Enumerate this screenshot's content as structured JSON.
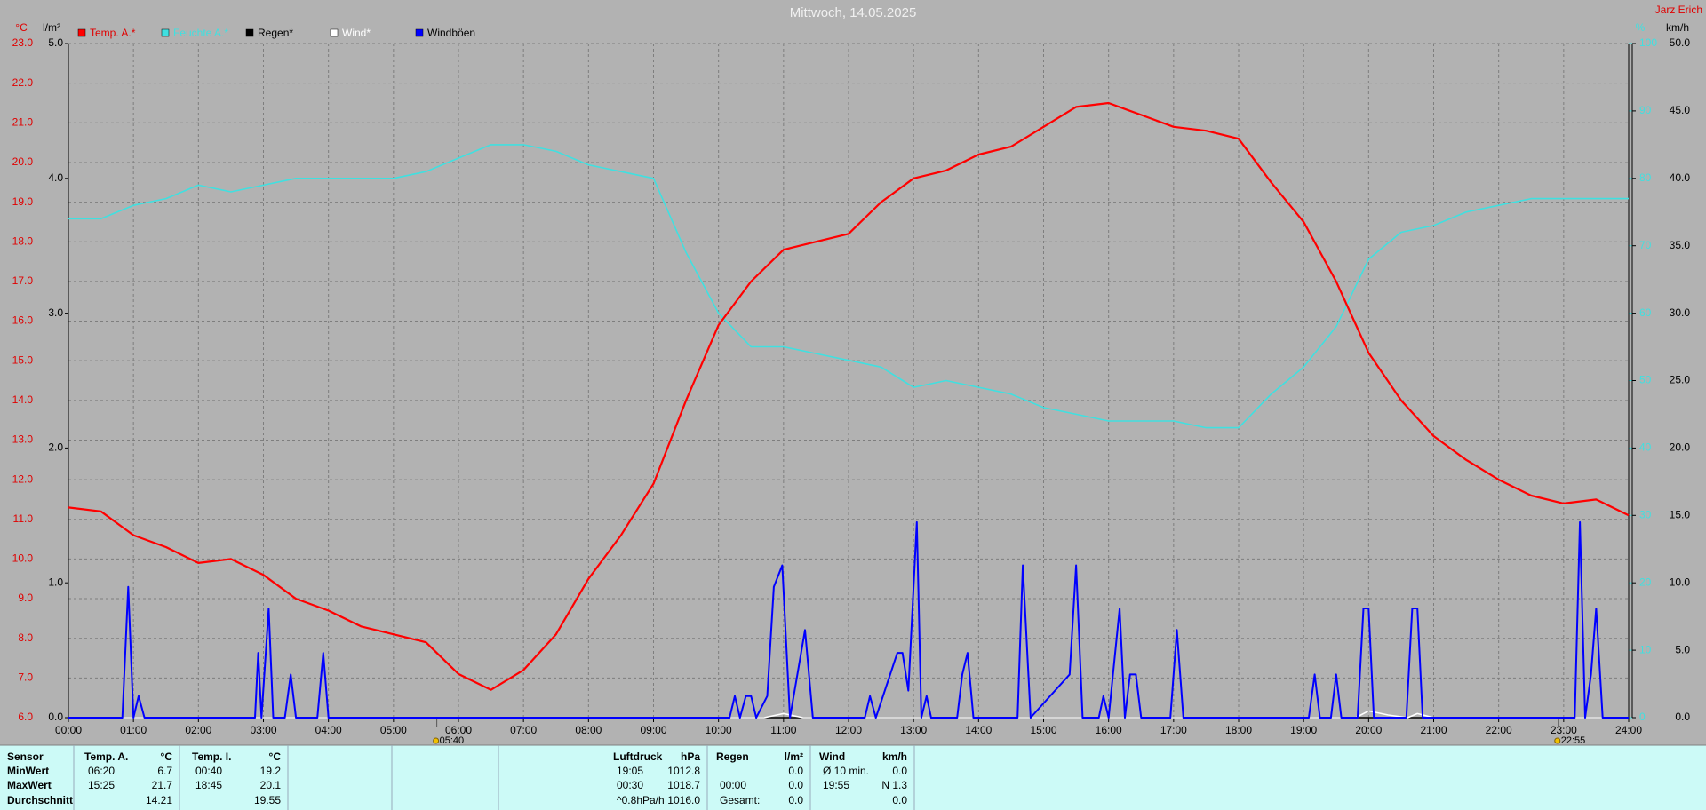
{
  "chart_data": {
    "type": "line",
    "title": "Mittwoch, 14.05.2025",
    "author": "Jarz Erich",
    "axis_labels": {
      "y": "°C",
      "y2": "l/m²",
      "y3": "%",
      "y4": "km/h"
    },
    "xlim": [
      0,
      24
    ],
    "xticks": [
      {
        "value": 0,
        "label": "00:00"
      },
      {
        "value": 1,
        "label": "01:00"
      },
      {
        "value": 2,
        "label": "02:00"
      },
      {
        "value": 3,
        "label": "03:00"
      },
      {
        "value": 4,
        "label": "04:00"
      },
      {
        "value": 5,
        "label": "05:00"
      },
      {
        "value": 6,
        "label": "06:00"
      },
      {
        "value": 7,
        "label": "07:00"
      },
      {
        "value": 8,
        "label": "08:00"
      },
      {
        "value": 9,
        "label": "09:00"
      },
      {
        "value": 10,
        "label": "10:00"
      },
      {
        "value": 11,
        "label": "11:00"
      },
      {
        "value": 12,
        "label": "12:00"
      },
      {
        "value": 13,
        "label": "13:00"
      },
      {
        "value": 14,
        "label": "14:00"
      },
      {
        "value": 15,
        "label": "15:00"
      },
      {
        "value": 16,
        "label": "16:00"
      },
      {
        "value": 17,
        "label": "17:00"
      },
      {
        "value": 18,
        "label": "18:00"
      },
      {
        "value": 19,
        "label": "19:00"
      },
      {
        "value": 20,
        "label": "20:00"
      },
      {
        "value": 21,
        "label": "21:00"
      },
      {
        "value": 22,
        "label": "22:00"
      },
      {
        "value": 23,
        "label": "23:00"
      },
      {
        "value": 24,
        "label": "24:00"
      }
    ],
    "ylim": [
      6,
      23
    ],
    "yticks": [
      {
        "value": 6,
        "label": "6.0"
      },
      {
        "value": 7,
        "label": "7.0"
      },
      {
        "value": 8,
        "label": "8.0"
      },
      {
        "value": 9,
        "label": "9.0"
      },
      {
        "value": 10,
        "label": "10.0"
      },
      {
        "value": 11,
        "label": "11.0"
      },
      {
        "value": 12,
        "label": "12.0"
      },
      {
        "value": 13,
        "label": "13.0"
      },
      {
        "value": 14,
        "label": "14.0"
      },
      {
        "value": 15,
        "label": "15.0"
      },
      {
        "value": 16,
        "label": "16.0"
      },
      {
        "value": 17,
        "label": "17.0"
      },
      {
        "value": 18,
        "label": "18.0"
      },
      {
        "value": 19,
        "label": "19.0"
      },
      {
        "value": 20,
        "label": "20.0"
      },
      {
        "value": 21,
        "label": "21.0"
      },
      {
        "value": 22,
        "label": "22.0"
      },
      {
        "value": 23,
        "label": "23.0"
      }
    ],
    "y2lim": [
      0,
      5
    ],
    "y2ticks": [
      {
        "value": 0,
        "label": "0.0"
      },
      {
        "value": 1,
        "label": "1.0"
      },
      {
        "value": 2,
        "label": "2.0"
      },
      {
        "value": 3,
        "label": "3.0"
      },
      {
        "value": 4,
        "label": "4.0"
      },
      {
        "value": 5,
        "label": "5.0"
      }
    ],
    "y3lim": [
      0,
      100
    ],
    "y3ticks": [
      0,
      10,
      20,
      30,
      40,
      50,
      60,
      70,
      80,
      90,
      100
    ],
    "y4lim": [
      0,
      50
    ],
    "y4ticks": [
      {
        "value": 0,
        "label": "0.0"
      },
      {
        "value": 5,
        "label": "5.0"
      },
      {
        "value": 10,
        "label": "10.0"
      },
      {
        "value": 15,
        "label": "15.0"
      },
      {
        "value": 20,
        "label": "20.0"
      },
      {
        "value": 25,
        "label": "25.0"
      },
      {
        "value": 30,
        "label": "30.0"
      },
      {
        "value": 35,
        "label": "35.0"
      },
      {
        "value": 40,
        "label": "40.0"
      },
      {
        "value": 45,
        "label": "45.0"
      },
      {
        "value": 50,
        "label": "50.0"
      }
    ],
    "grid": true,
    "series": [
      {
        "name": "Temp. A.*",
        "color": "#ff0000",
        "axis": "y",
        "x": [
          0,
          0.5,
          1,
          1.5,
          2,
          2.5,
          3,
          3.5,
          4,
          4.5,
          5,
          5.5,
          6,
          6.5,
          7,
          7.5,
          8,
          8.5,
          9,
          9.5,
          10,
          10.5,
          11,
          11.5,
          12,
          12.5,
          13,
          13.5,
          14,
          14.5,
          15,
          15.5,
          16,
          16.5,
          17,
          17.5,
          18,
          18.5,
          19,
          19.5,
          20,
          20.5,
          21,
          21.5,
          22,
          22.5,
          23,
          23.5,
          24
        ],
        "values": [
          11.3,
          11.2,
          10.6,
          10.3,
          9.9,
          10.0,
          9.6,
          9.0,
          8.7,
          8.3,
          8.1,
          7.9,
          7.1,
          6.7,
          7.2,
          8.1,
          9.5,
          10.6,
          11.9,
          14.0,
          15.9,
          17.0,
          17.8,
          18.0,
          18.2,
          19.0,
          19.6,
          19.8,
          20.2,
          20.4,
          20.9,
          21.4,
          21.5,
          21.2,
          20.9,
          20.8,
          20.6,
          19.5,
          18.5,
          17.0,
          15.2,
          14.0,
          13.1,
          12.5,
          12.0,
          11.6,
          11.4,
          11.5,
          11.1
        ]
      },
      {
        "name": "Feuchte A.*",
        "color": "#40e0e0",
        "axis": "y3",
        "x": [
          0,
          0.5,
          1,
          1.5,
          2,
          2.5,
          3,
          3.5,
          4,
          4.5,
          5,
          5.5,
          6,
          6.5,
          7,
          7.5,
          8,
          8.5,
          9,
          9.5,
          10,
          10.5,
          11,
          11.5,
          12,
          12.5,
          13,
          13.5,
          14,
          14.5,
          15,
          15.5,
          16,
          16.5,
          17,
          17.5,
          18,
          18.5,
          19,
          19.5,
          20,
          20.5,
          21,
          21.5,
          22,
          22.5,
          23,
          23.5,
          24
        ],
        "values": [
          74,
          74,
          76,
          77,
          79,
          78,
          79,
          80,
          80,
          80,
          80,
          81,
          83,
          85,
          85,
          84,
          82,
          81,
          80,
          69,
          60,
          55,
          55,
          54,
          53,
          52,
          49,
          50,
          49,
          48,
          46,
          45,
          44,
          44,
          44,
          43,
          43,
          48,
          52,
          58,
          68,
          72,
          73,
          75,
          76,
          77,
          77,
          77,
          77
        ]
      },
      {
        "name": "Regen*",
        "color": "#000000",
        "axis": "y2",
        "x": [
          0,
          24
        ],
        "values": [
          0,
          0
        ]
      },
      {
        "name": "Wind*",
        "color": "#ffffff",
        "axis": "y4",
        "x": [
          0,
          10.7,
          11,
          11.3,
          19.8,
          20,
          20.3,
          20.6,
          20.75,
          21,
          24
        ],
        "values": [
          0,
          0,
          0.3,
          0,
          0,
          0.5,
          0.2,
          0,
          0.3,
          0,
          0
        ]
      },
      {
        "name": "Windböen",
        "color": "#0000ff",
        "axis": "y4",
        "x": [
          0,
          0.83,
          0.92,
          1.0,
          1.08,
          1.17,
          2.87,
          2.92,
          2.97,
          3.08,
          3.15,
          3.33,
          3.42,
          3.5,
          3.83,
          3.92,
          4.0,
          10.17,
          10.25,
          10.33,
          10.42,
          10.5,
          10.58,
          10.75,
          10.85,
          10.98,
          11.1,
          11.33,
          11.45,
          12.25,
          12.33,
          12.42,
          12.75,
          12.83,
          12.92,
          13.05,
          13.12,
          13.2,
          13.27,
          13.67,
          13.75,
          13.83,
          13.92,
          14.6,
          14.68,
          14.8,
          15.4,
          15.5,
          15.6,
          15.85,
          15.92,
          16.0,
          16.17,
          16.25,
          16.33,
          16.42,
          16.5,
          16.95,
          17.05,
          17.15,
          19.08,
          19.17,
          19.25,
          19.42,
          19.5,
          19.58,
          19.83,
          19.92,
          20.0,
          20.08,
          20.58,
          20.67,
          20.75,
          20.83,
          23.17,
          23.25,
          23.33,
          23.42,
          23.5,
          23.6,
          24
        ],
        "values": [
          0,
          0,
          9.7,
          0,
          1.6,
          0,
          0,
          4.8,
          0,
          8.1,
          0,
          0,
          3.2,
          0,
          0,
          4.8,
          0,
          0,
          1.6,
          0,
          1.6,
          1.6,
          0,
          1.6,
          9.7,
          11.3,
          0,
          6.5,
          0,
          0,
          1.6,
          0,
          4.8,
          4.8,
          2.0,
          14.5,
          0,
          1.6,
          0,
          0,
          3.2,
          4.8,
          0,
          0,
          11.3,
          0,
          3.2,
          11.3,
          0,
          0,
          1.6,
          0,
          8.1,
          0,
          3.2,
          3.2,
          0,
          0,
          6.5,
          0,
          0,
          3.2,
          0,
          0,
          3.2,
          0,
          0,
          8.1,
          8.1,
          0,
          0,
          8.1,
          8.1,
          0,
          0,
          14.5,
          0,
          3.2,
          8.1,
          0,
          0
        ]
      }
    ],
    "annotations": [
      {
        "x": 5.667,
        "label": "05:40"
      },
      {
        "x": 22.917,
        "label": "22:55"
      }
    ]
  },
  "stats_table": {
    "row_labels": [
      "Sensor",
      "MinWert",
      "MaxWert",
      "Durchschnitt"
    ],
    "panels": [
      {
        "title": "Temp. A.",
        "unit": "°C",
        "rows": [
          [
            "06:20",
            "6.7"
          ],
          [
            "15:25",
            "21.7"
          ],
          [
            null,
            "14.21"
          ]
        ]
      },
      {
        "title": "Temp. I.",
        "unit": "°C",
        "rows": [
          [
            "00:40",
            "19.2"
          ],
          [
            "18:45",
            "20.1"
          ],
          [
            null,
            "19.55"
          ]
        ]
      },
      {
        "title": "Luftdruck",
        "unit": "hPa",
        "rows": [
          [
            "19:05",
            "1012.8"
          ],
          [
            "00:30",
            "1018.7"
          ],
          [
            "^0.8hPa/h",
            "1016.0"
          ]
        ]
      },
      {
        "title": "Regen",
        "unit": "l/m²",
        "rows": [
          [
            null,
            "0.0"
          ],
          [
            "00:00",
            "0.0"
          ],
          [
            "Gesamt:",
            "0.0"
          ]
        ]
      },
      {
        "title": "Wind",
        "unit": "km/h",
        "rows": [
          [
            "Ø 10 min.",
            "0.0"
          ],
          [
            "19:55",
            "N 1.3"
          ],
          [
            null,
            "0.0"
          ]
        ]
      }
    ]
  }
}
